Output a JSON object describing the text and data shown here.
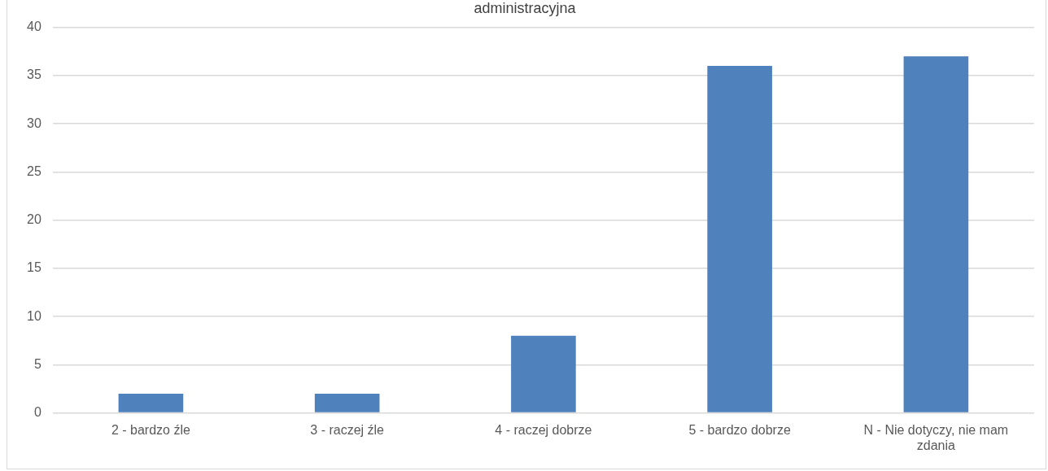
{
  "chart_data": {
    "type": "bar",
    "title": "administracyjna",
    "categories": [
      "2 - bardzo źle",
      "3 - raczej źle",
      "4 - raczej dobrze",
      "5 - bardzo dobrze",
      "N - Nie dotyczy, nie mam zdania"
    ],
    "values": [
      2,
      2,
      8,
      36,
      37
    ],
    "color": "#4f81bd",
    "ylim": [
      0,
      40
    ],
    "yticks": [
      0,
      5,
      10,
      15,
      20,
      25,
      30,
      35,
      40
    ],
    "grid": "y",
    "legend": false
  }
}
